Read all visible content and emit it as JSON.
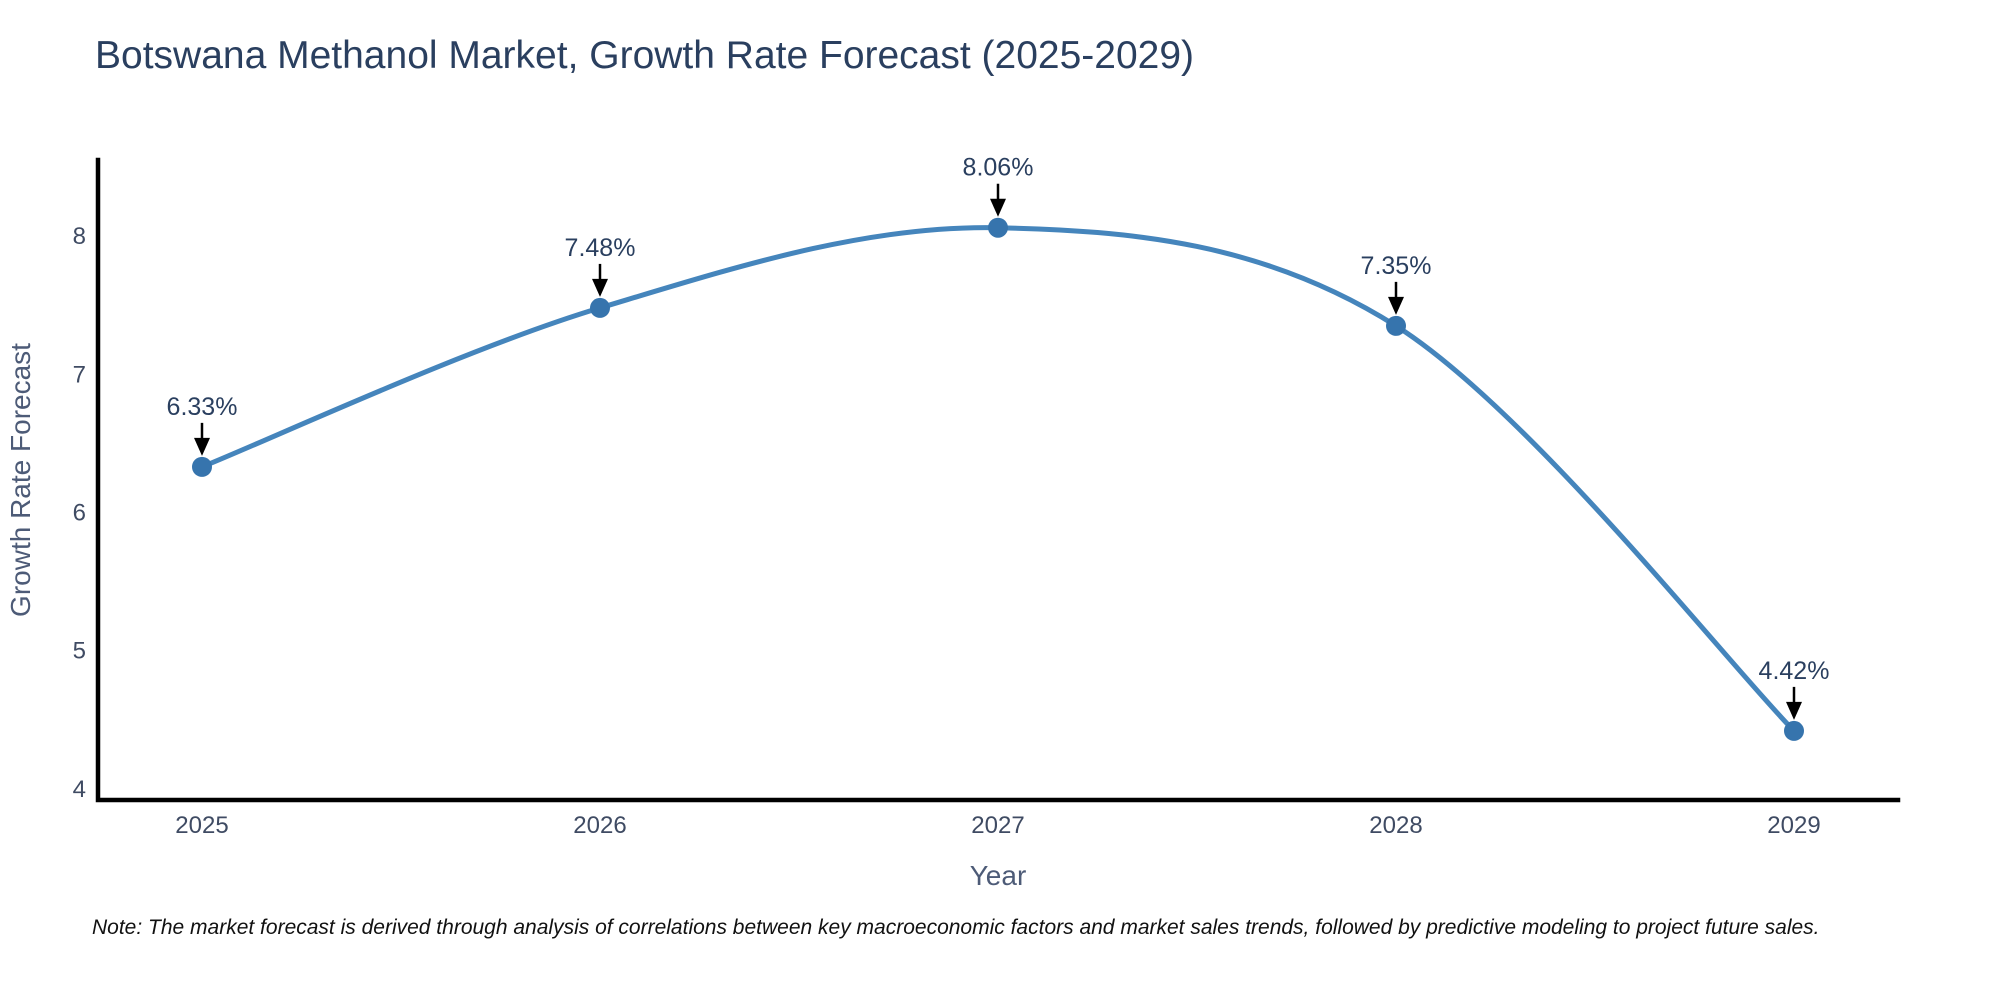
{
  "title": "Botswana Methanol Market, Growth Rate Forecast (2025-2029)",
  "note": "Note: The market forecast is derived through analysis of correlations between key macroeconomic factors and market sales trends, followed by predictive modeling to project future sales.",
  "colors": {
    "background": "#ffffff",
    "title_text": "#2a3f5f",
    "tick_text": "#3f4b63",
    "axis_title_text": "#4d5b77",
    "annotation_text": "#2a3f5f",
    "axis_line": "#000000",
    "arrow": "#000000",
    "line": "#4585bc",
    "marker": "#3674ad",
    "note_text": "#111111"
  },
  "chart_data": {
    "type": "line",
    "title": "Botswana Methanol Market, Growth Rate Forecast (2025-2029)",
    "xlabel": "Year",
    "ylabel": "Growth Rate Forecast",
    "categories": [
      "2025",
      "2026",
      "2027",
      "2028",
      "2029"
    ],
    "series": [
      {
        "name": "Growth Rate Forecast",
        "values": [
          6.33,
          7.48,
          8.06,
          7.35,
          4.42
        ],
        "point_labels": [
          "6.33%",
          "7.48%",
          "8.06%",
          "7.35%",
          "4.42%"
        ]
      }
    ],
    "yticks": [
      4,
      5,
      6,
      7,
      8
    ],
    "ylim": [
      3.92,
      8.55
    ],
    "line_shape": "spline",
    "grid": false,
    "legend": false,
    "annotations": "down-arrow-to-each-point"
  }
}
